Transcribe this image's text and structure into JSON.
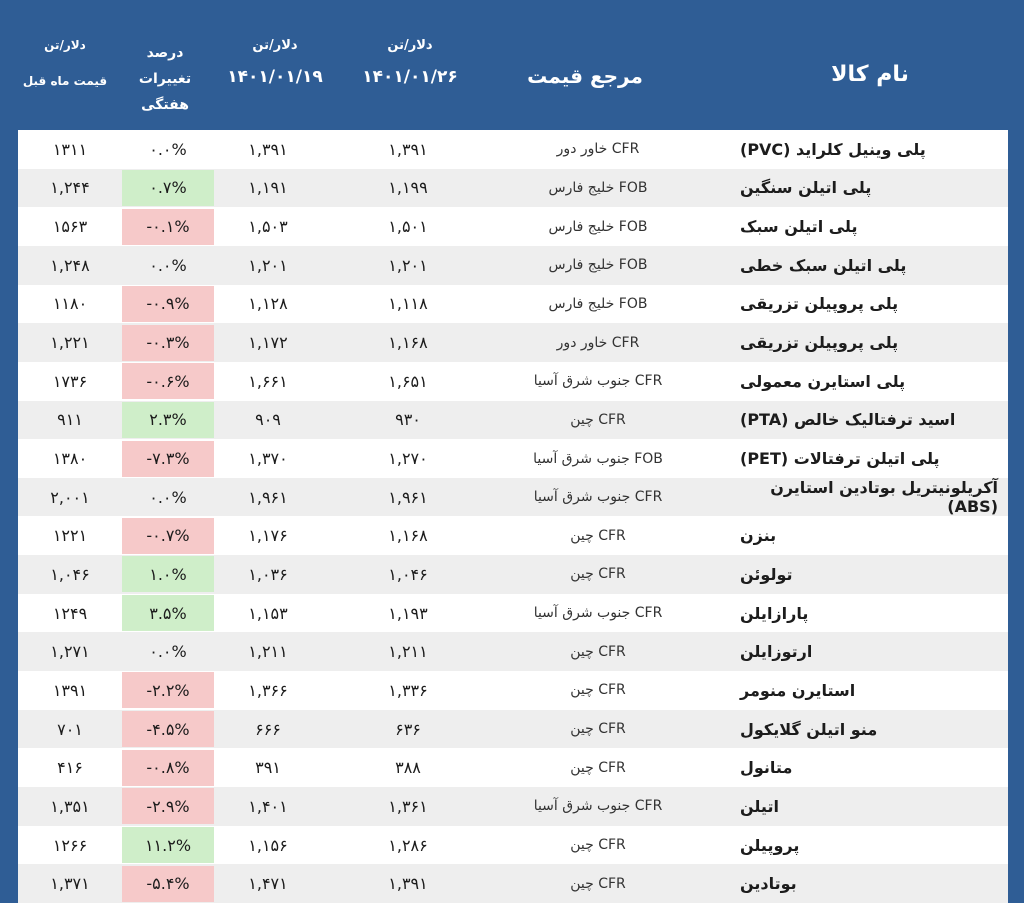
{
  "header": {
    "product": "نام کالا",
    "reference": "مرجع قیمت",
    "date1_unit": "دلار/تن",
    "date1": "۱۴۰۱/۰۱/۲۶",
    "date2_unit": "دلار/تن",
    "date2": "۱۴۰۱/۰۱/۱۹",
    "change_title": "درصد",
    "change_sub1": "تغییرات",
    "change_sub2": "هفتگی",
    "prev_unit": "دلار/تن",
    "prev_title": "قیمت ماه قبل"
  },
  "rows": [
    {
      "name": "پلی وینیل کلراید (PVC)",
      "ref": "CFR  خاور دور",
      "p1": "۱,۳۹۱",
      "p2": "۱,۳۹۱",
      "chg": "۰.۰%",
      "trend": "zero",
      "prev": "۱۳۱۱"
    },
    {
      "name": "پلی اتیلن سنگین",
      "ref": "FOB  خلیج فارس",
      "p1": "۱,۱۹۹",
      "p2": "۱,۱۹۱",
      "chg": "۰.۷%",
      "trend": "pos",
      "prev": "۱,۲۴۴"
    },
    {
      "name": "پلی اتیلن سبک",
      "ref": "FOB  خلیج فارس",
      "p1": "۱,۵۰۱",
      "p2": "۱,۵۰۳",
      "chg": "-۰.۱%",
      "trend": "neg",
      "prev": "۱۵۶۳"
    },
    {
      "name": "پلی اتیلن سبک خطی",
      "ref": "FOB  خلیج فارس",
      "p1": "۱,۲۰۱",
      "p2": "۱,۲۰۱",
      "chg": "۰.۰%",
      "trend": "zero",
      "prev": "۱,۲۴۸"
    },
    {
      "name": "پلی پروپیلن تزریقی",
      "ref": "FOB  خلیج فارس",
      "p1": "۱,۱۱۸",
      "p2": "۱,۱۲۸",
      "chg": "-۰.۹%",
      "trend": "neg",
      "prev": "۱۱۸۰"
    },
    {
      "name": "پلی پروپیلن تزریقی",
      "ref": "CFR  خاور دور",
      "p1": "۱,۱۶۸",
      "p2": "۱,۱۷۲",
      "chg": "-۰.۳%",
      "trend": "neg",
      "prev": "۱,۲۲۱"
    },
    {
      "name": "پلی استایرن معمولی",
      "ref": "CFR جنوب شرق آسیا",
      "p1": "۱,۶۵۱",
      "p2": "۱,۶۶۱",
      "chg": "-۰.۶%",
      "trend": "neg",
      "prev": "۱۷۳۶"
    },
    {
      "name": "اسید ترفتالیک خالص (PTA)",
      "ref": "CFR  چین",
      "p1": "۹۳۰",
      "p2": "۹۰۹",
      "chg": "۲.۳%",
      "trend": "pos",
      "prev": "۹۱۱"
    },
    {
      "name": "پلی اتیلن ترفتالات (PET)",
      "ref": "FOB جنوب شرق آسیا",
      "p1": "۱,۲۷۰",
      "p2": "۱,۳۷۰",
      "chg": "-۷.۳%",
      "trend": "neg",
      "prev": "۱۳۸۰"
    },
    {
      "name": "آکریلونیتریل بوتادین استایرن (ABS)",
      "ref": "CFR جنوب شرق آسیا",
      "p1": "۱,۹۶۱",
      "p2": "۱,۹۶۱",
      "chg": "۰.۰%",
      "trend": "zero",
      "prev": "۲,۰۰۱"
    },
    {
      "name": "بنزن",
      "ref": "CFR  چین",
      "p1": "۱,۱۶۸",
      "p2": "۱,۱۷۶",
      "chg": "-۰.۷%",
      "trend": "neg",
      "prev": "۱۲۲۱"
    },
    {
      "name": "تولوئن",
      "ref": "CFR  چین",
      "p1": "۱,۰۴۶",
      "p2": "۱,۰۳۶",
      "chg": "۱.۰%",
      "trend": "pos",
      "prev": "۱,۰۴۶"
    },
    {
      "name": "پارازایلن",
      "ref": "CFR جنوب شرق آسیا",
      "p1": "۱,۱۹۳",
      "p2": "۱,۱۵۳",
      "chg": "۳.۵%",
      "trend": "pos",
      "prev": "۱۲۴۹"
    },
    {
      "name": "ارتوزایلن",
      "ref": "CFR  چین",
      "p1": "۱,۲۱۱",
      "p2": "۱,۲۱۱",
      "chg": "۰.۰%",
      "trend": "zero",
      "prev": "۱,۲۷۱"
    },
    {
      "name": "استایرن منومر",
      "ref": "CFR  چین",
      "p1": "۱,۳۳۶",
      "p2": "۱,۳۶۶",
      "chg": "-۲.۲%",
      "trend": "neg",
      "prev": "۱۳۹۱"
    },
    {
      "name": "منو اتیلن گلایکول",
      "ref": "CFR  چین",
      "p1": "۶۳۶",
      "p2": "۶۶۶",
      "chg": "-۴.۵%",
      "trend": "neg",
      "prev": "۷۰۱"
    },
    {
      "name": "متانول",
      "ref": "CFR  چین",
      "p1": "۳۸۸",
      "p2": "۳۹۱",
      "chg": "-۰.۸%",
      "trend": "neg",
      "prev": "۴۱۶"
    },
    {
      "name": "اتیلن",
      "ref": "CFR جنوب شرق آسیا",
      "p1": "۱,۳۶۱",
      "p2": "۱,۴۰۱",
      "chg": "-۲.۹%",
      "trend": "neg",
      "prev": "۱,۳۵۱"
    },
    {
      "name": "پروپیلن",
      "ref": "CFR  چین",
      "p1": "۱,۲۸۶",
      "p2": "۱,۱۵۶",
      "chg": "۱۱.۲%",
      "trend": "pos",
      "prev": "۱۲۶۶"
    },
    {
      "name": "بوتادین",
      "ref": "CFR  چین",
      "p1": "۱,۳۹۱",
      "p2": "۱,۴۷۱",
      "chg": "-۵.۴%",
      "trend": "neg",
      "prev": "۱,۳۷۱"
    }
  ]
}
